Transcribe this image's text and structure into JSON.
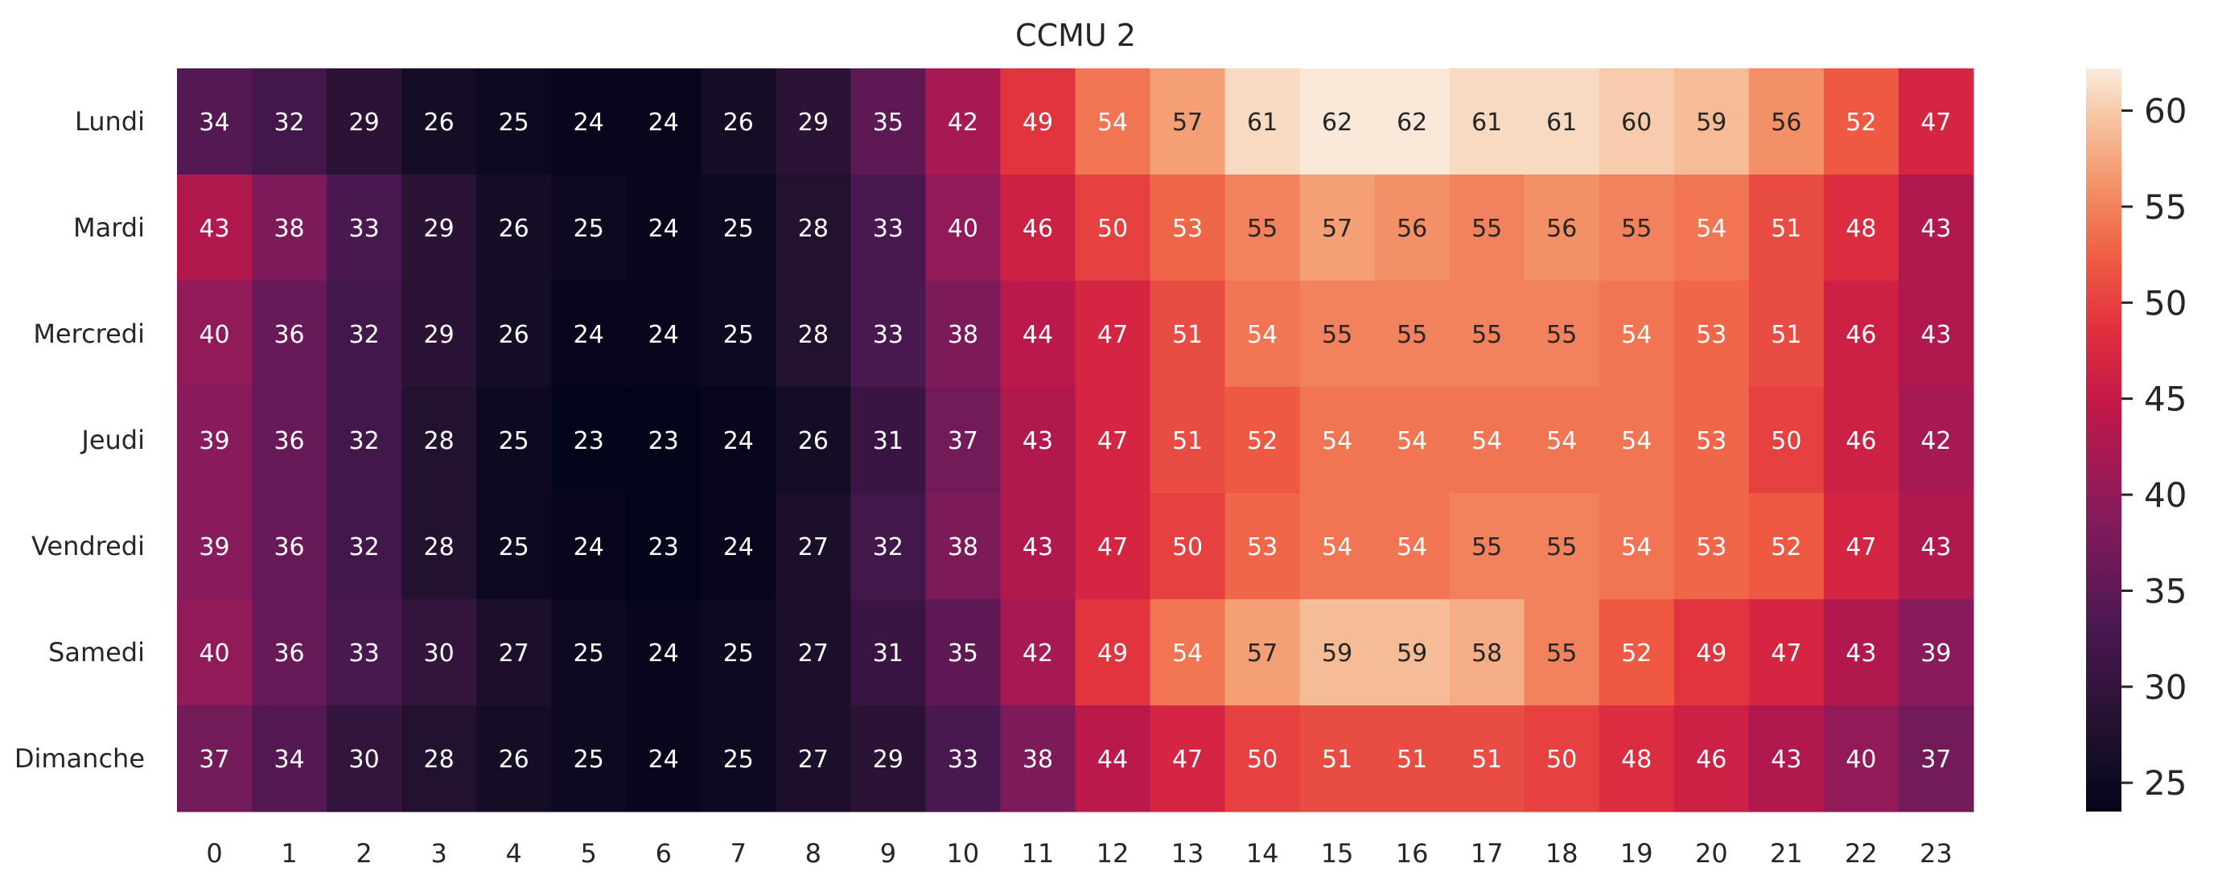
{
  "chart_data": {
    "type": "heatmap",
    "title": "CCMU 2",
    "xlabel": "",
    "ylabel": "",
    "x_categories": [
      "0",
      "1",
      "2",
      "3",
      "4",
      "5",
      "6",
      "7",
      "8",
      "9",
      "10",
      "11",
      "12",
      "13",
      "14",
      "15",
      "16",
      "17",
      "18",
      "19",
      "20",
      "21",
      "22",
      "23"
    ],
    "y_categories": [
      "Lundi",
      "Mardi",
      "Mercredi",
      "Jeudi",
      "Vendredi",
      "Samedi",
      "Dimanche"
    ],
    "values": [
      [
        34,
        32,
        29,
        26,
        25,
        24,
        24,
        26,
        29,
        35,
        42,
        49,
        54,
        57,
        61,
        62,
        62,
        61,
        61,
        60,
        59,
        56,
        52,
        47
      ],
      [
        43,
        38,
        33,
        29,
        26,
        25,
        24,
        25,
        28,
        33,
        40,
        46,
        50,
        53,
        55,
        57,
        56,
        55,
        56,
        55,
        54,
        51,
        48,
        43
      ],
      [
        40,
        36,
        32,
        29,
        26,
        24,
        24,
        25,
        28,
        33,
        38,
        44,
        47,
        51,
        54,
        55,
        55,
        55,
        55,
        54,
        53,
        51,
        46,
        43
      ],
      [
        39,
        36,
        32,
        28,
        25,
        23,
        23,
        24,
        26,
        31,
        37,
        43,
        47,
        51,
        52,
        54,
        54,
        54,
        54,
        54,
        53,
        50,
        46,
        42
      ],
      [
        39,
        36,
        32,
        28,
        25,
        24,
        23,
        24,
        27,
        32,
        38,
        43,
        47,
        50,
        53,
        54,
        54,
        55,
        55,
        54,
        53,
        52,
        47,
        43
      ],
      [
        40,
        36,
        33,
        30,
        27,
        25,
        24,
        25,
        27,
        31,
        35,
        42,
        49,
        54,
        57,
        59,
        59,
        58,
        55,
        52,
        49,
        47,
        43,
        39
      ],
      [
        37,
        34,
        30,
        28,
        26,
        25,
        24,
        25,
        27,
        29,
        33,
        38,
        44,
        47,
        50,
        51,
        51,
        51,
        50,
        48,
        46,
        43,
        40,
        37
      ]
    ],
    "colormap": "rocket",
    "colorbar": {
      "range": [
        23.5,
        62.2
      ],
      "ticks": [
        "25",
        "30",
        "35",
        "40",
        "45",
        "50",
        "55",
        "60"
      ]
    },
    "annotations": true,
    "grid": false
  }
}
